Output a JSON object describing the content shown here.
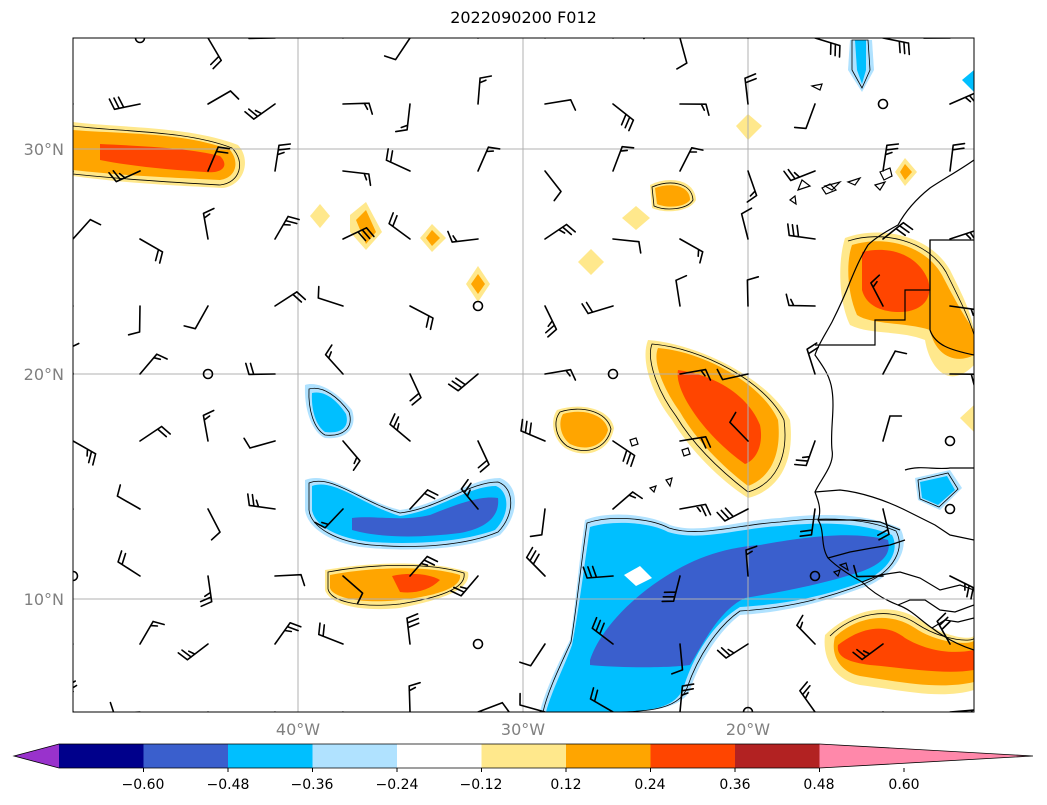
{
  "title": "2022090200 F012",
  "map": {
    "lon_range": [
      -50,
      -10
    ],
    "lat_range": [
      5,
      35
    ],
    "lon_ticks": [
      -40,
      -30,
      -20
    ],
    "lat_ticks": [
      10,
      20,
      30
    ],
    "lon_tick_labels": [
      "40°W",
      "30°W",
      "20°W"
    ],
    "lat_tick_labels": [
      "10°N",
      "20°N",
      "30°N"
    ],
    "gridlines": true,
    "features": [
      "wind-barbs",
      "coastlines",
      "country-borders",
      "filled-contours"
    ]
  },
  "colorbar": {
    "orientation": "horizontal",
    "extend": "both",
    "tick_labels": [
      "−0.60",
      "−0.48",
      "−0.36",
      "−0.24",
      "−0.12",
      "0.12",
      "0.24",
      "0.36",
      "0.48",
      "0.60"
    ],
    "colors": {
      "under": "#9932cc",
      "bins": [
        "#00008b",
        "#3a5fcd",
        "#00bfff",
        "#b0e2ff",
        "#ffffff",
        "#ffe88c",
        "#ffa500",
        "#ff4500",
        "#b22222"
      ],
      "over": "#ff88aa"
    }
  }
}
